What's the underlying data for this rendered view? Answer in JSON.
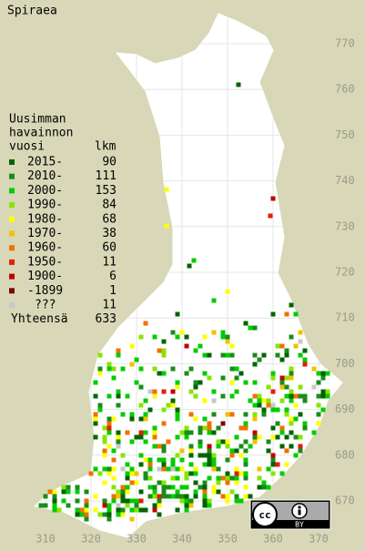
{
  "title": "Spiraea",
  "legend": {
    "header": [
      "Uusimman",
      "havainnon",
      "vuosi"
    ],
    "count_header": "lkm",
    "rows": [
      {
        "label": "2015-",
        "count": 90,
        "color": "#006400"
      },
      {
        "label": "2010-",
        "count": 111,
        "color": "#1a8c1a"
      },
      {
        "label": "2000-",
        "count": 153,
        "color": "#00cc00"
      },
      {
        "label": "1990-",
        "count": 84,
        "color": "#88e400"
      },
      {
        "label": "1980-",
        "count": 68,
        "color": "#ffff00"
      },
      {
        "label": "1970-",
        "count": 38,
        "color": "#f2c200"
      },
      {
        "label": "1960-",
        "count": 60,
        "color": "#f07000"
      },
      {
        "label": "1950-",
        "count": 11,
        "color": "#e02000"
      },
      {
        "label": "1900-",
        "count": 6,
        "color": "#c00000"
      },
      {
        "label": "-1899",
        "count": 1,
        "color": "#800000"
      },
      {
        "label": "???",
        "count": 11,
        "color": "#c8c8c8"
      }
    ],
    "total": {
      "label": "Yhteensä",
      "count": 633
    }
  },
  "grid": {
    "y_labels": [
      770,
      760,
      750,
      740,
      730,
      720,
      710,
      700,
      690,
      680,
      670
    ],
    "x_labels": [
      310,
      320,
      330,
      340,
      350,
      360,
      370
    ]
  },
  "license": {
    "icon": "cc",
    "label": "BY"
  }
}
